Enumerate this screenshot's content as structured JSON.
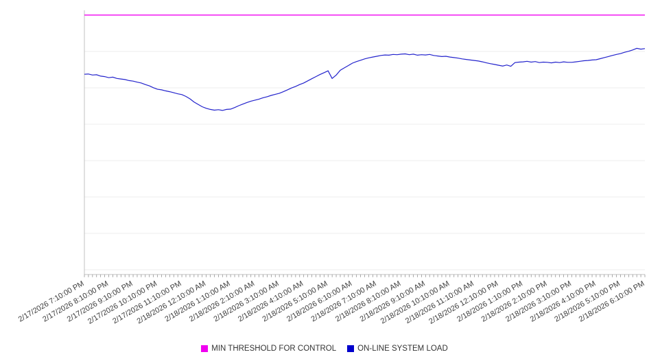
{
  "legend": [
    {
      "label": "MIN THRESHOLD FOR CONTROL",
      "color": "#f000f0"
    },
    {
      "label": "ON-LINE SYSTEM LOAD",
      "color": "#0000cc"
    }
  ],
  "chart_data": {
    "type": "line",
    "title": "",
    "xlabel": "",
    "ylabel": "",
    "ylim": [
      0,
      100
    ],
    "grid": "horizontal",
    "legend_position": "bottom",
    "x_labels": [
      "2/17/2026 7:10:00 PM",
      "2/17/2026 8:10:00 PM",
      "2/17/2026 9:10:00 PM",
      "2/17/2026 10:10:00 PM",
      "2/17/2026 11:10:00 PM",
      "2/18/2026 12:10:00 AM",
      "2/18/2026 1:10:00 AM",
      "2/18/2026 2:10:00 AM",
      "2/18/2026 3:10:00 AM",
      "2/18/2026 4:10:00 AM",
      "2/18/2026 5:10:00 AM",
      "2/18/2026 6:10:00 AM",
      "2/18/2026 7:10:00 AM",
      "2/18/2026 8:10:00 AM",
      "2/18/2026 9:10:00 AM",
      "2/18/2026 10:10:00 AM",
      "2/18/2026 11:10:00 AM",
      "2/18/2026 12:10:00 PM",
      "2/18/2026 1:10:00 PM",
      "2/18/2026 2:10:00 PM",
      "2/18/2026 3:10:00 PM",
      "2/18/2026 4:10:00 PM",
      "2/18/2026 5:10:00 PM",
      "2/18/2026 6:10:00 PM"
    ],
    "points_per_hour": 6,
    "series": [
      {
        "name": "MIN THRESHOLD FOR CONTROL",
        "color": "#f000f0",
        "constant": 98.2
      },
      {
        "name": "ON-LINE SYSTEM LOAD",
        "color": "#2222cc",
        "values": [
          75.8,
          75.9,
          75.5,
          75.6,
          75.1,
          74.9,
          74.5,
          74.7,
          74.2,
          74.0,
          73.8,
          73.4,
          73.2,
          72.8,
          72.5,
          71.9,
          71.4,
          70.7,
          70.1,
          69.9,
          69.5,
          69.2,
          68.8,
          68.4,
          68.1,
          67.4,
          66.5,
          65.3,
          64.4,
          63.5,
          62.9,
          62.5,
          62.2,
          62.4,
          62.1,
          62.5,
          62.6,
          63.2,
          63.9,
          64.5,
          65.1,
          65.6,
          66.0,
          66.4,
          66.9,
          67.3,
          67.8,
          68.2,
          68.6,
          69.2,
          69.9,
          70.6,
          71.2,
          71.9,
          72.5,
          73.3,
          74.1,
          74.9,
          75.7,
          76.4,
          77.1,
          74.2,
          75.5,
          77.3,
          78.2,
          79.1,
          80.0,
          80.6,
          81.1,
          81.6,
          82.0,
          82.3,
          82.6,
          82.9,
          83.1,
          83.0,
          83.3,
          83.2,
          83.4,
          83.5,
          83.2,
          83.4,
          83.0,
          83.2,
          83.1,
          83.3,
          82.9,
          82.7,
          82.5,
          82.6,
          82.3,
          82.1,
          81.9,
          81.6,
          81.4,
          81.2,
          81.0,
          80.8,
          80.5,
          80.1,
          79.8,
          79.5,
          79.2,
          78.9,
          79.3,
          78.8,
          80.2,
          80.4,
          80.5,
          80.7,
          80.4,
          80.6,
          80.2,
          80.4,
          80.3,
          80.1,
          80.4,
          80.2,
          80.5,
          80.3,
          80.3,
          80.5,
          80.7,
          80.9,
          81.0,
          81.2,
          81.3,
          81.7,
          82.1,
          82.5,
          82.9,
          83.3,
          83.6,
          84.1,
          84.5,
          85.0,
          85.6,
          85.3,
          85.5
        ]
      }
    ]
  }
}
